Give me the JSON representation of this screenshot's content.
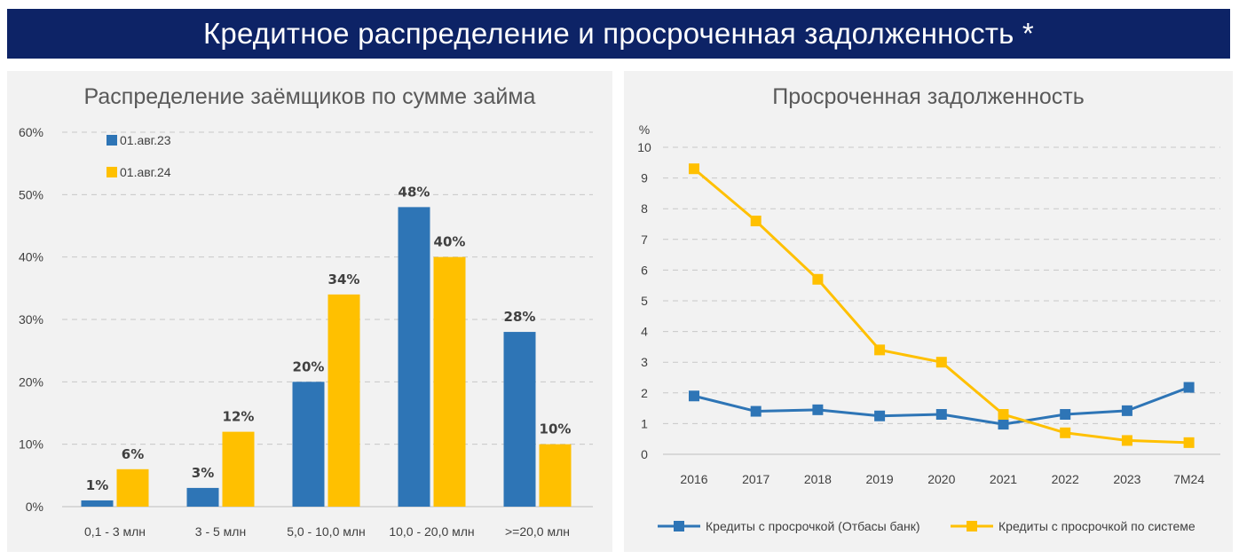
{
  "header": {
    "title": "Кредитное распределение и просроченная задолженность *"
  },
  "colors": {
    "header_bg": "#0d2366",
    "panel_bg": "#f2f2f2",
    "blue": "#2e75b6",
    "yellow": "#ffc000"
  },
  "chart_data": [
    {
      "type": "bar",
      "title": "Распределение заёмщиков по сумме займа",
      "categories": [
        "0,1 - 3 млн",
        "3 - 5 млн",
        "5,0 - 10,0 млн",
        "10,0 - 20,0 млн",
        ">=20,0 млн"
      ],
      "series": [
        {
          "name": "01.авг.23",
          "values": [
            1,
            3,
            20,
            48,
            28
          ],
          "labels": [
            "1%",
            "3%",
            "20%",
            "48%",
            "28%"
          ],
          "color": "#2e75b6"
        },
        {
          "name": "01.авг.24",
          "values": [
            6,
            12,
            34,
            40,
            10
          ],
          "labels": [
            "6%",
            "12%",
            "34%",
            "40%",
            "10%"
          ],
          "color": "#ffc000"
        }
      ],
      "ylim": [
        0,
        60
      ],
      "yticks": [
        "0%",
        "10%",
        "20%",
        "30%",
        "40%",
        "50%",
        "60%"
      ],
      "grid": true,
      "legend": "top-left"
    },
    {
      "type": "line",
      "title": "Просроченная задолженность",
      "ylabel": "%",
      "x": [
        "2016",
        "2017",
        "2018",
        "2019",
        "2020",
        "2021",
        "2022",
        "2023",
        "7М24"
      ],
      "series": [
        {
          "name": "Кредиты с просрочкой (Отбасы банк)",
          "values": [
            1.9,
            1.4,
            1.45,
            1.25,
            1.3,
            0.98,
            1.3,
            1.42,
            2.18
          ],
          "color": "#2e75b6"
        },
        {
          "name": "Кредиты с просрочкой по системе",
          "values": [
            9.3,
            7.6,
            5.7,
            3.4,
            3.0,
            1.3,
            0.7,
            0.45,
            0.38
          ],
          "color": "#ffc000"
        }
      ],
      "ylim": [
        0,
        10
      ],
      "yticks": [
        "0",
        "1",
        "2",
        "3",
        "4",
        "5",
        "6",
        "7",
        "8",
        "9",
        "10"
      ],
      "grid": true,
      "legend": "bottom"
    }
  ]
}
